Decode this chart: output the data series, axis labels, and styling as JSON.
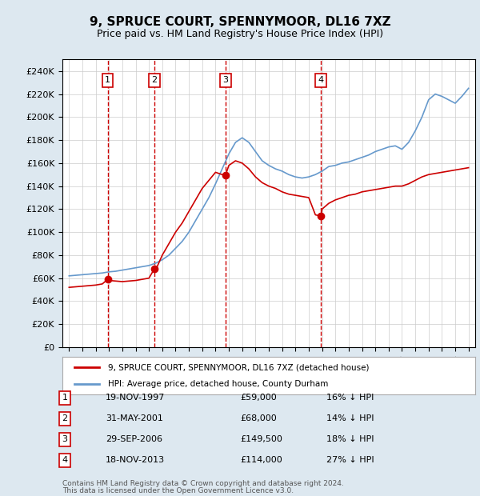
{
  "title": "9, SPRUCE COURT, SPENNYMOOR, DL16 7XZ",
  "subtitle": "Price paid vs. HM Land Registry's House Price Index (HPI)",
  "footer1": "Contains HM Land Registry data © Crown copyright and database right 2024.",
  "footer2": "This data is licensed under the Open Government Licence v3.0.",
  "legend_line1": "9, SPRUCE COURT, SPENNYMOOR, DL16 7XZ (detached house)",
  "legend_line2": "HPI: Average price, detached house, County Durham",
  "purchases": [
    {
      "num": 1,
      "date": "19-NOV-1997",
      "price": "£59,000",
      "hpi": "16% ↓ HPI",
      "year": 1997.9
    },
    {
      "num": 2,
      "date": "31-MAY-2001",
      "price": "£68,000",
      "hpi": "14% ↓ HPI",
      "year": 2001.4
    },
    {
      "num": 3,
      "date": "29-SEP-2006",
      "price": "£149,500",
      "hpi": "18% ↓ HPI",
      "year": 2006.75
    },
    {
      "num": 4,
      "date": "18-NOV-2013",
      "price": "£114,000",
      "hpi": "27% ↓ HPI",
      "year": 2013.9
    }
  ],
  "hpi_color": "#6699cc",
  "price_color": "#cc0000",
  "vline_color": "#cc0000",
  "background_color": "#dde8f0",
  "plot_bg_color": "#ffffff",
  "grid_color": "#cccccc",
  "ylim": [
    0,
    250000
  ],
  "yticks": [
    0,
    20000,
    40000,
    60000,
    80000,
    100000,
    120000,
    140000,
    160000,
    180000,
    200000,
    220000,
    240000
  ],
  "hpi_years": [
    1995,
    1995.5,
    1996,
    1996.5,
    1997,
    1997.5,
    1998,
    1998.5,
    1999,
    1999.5,
    2000,
    2000.5,
    2001,
    2001.5,
    2002,
    2002.5,
    2003,
    2003.5,
    2004,
    2004.5,
    2005,
    2005.5,
    2006,
    2006.5,
    2007,
    2007.5,
    2008,
    2008.5,
    2009,
    2009.5,
    2010,
    2010.5,
    2011,
    2011.5,
    2012,
    2012.5,
    2013,
    2013.5,
    2014,
    2014.5,
    2015,
    2015.5,
    2016,
    2016.5,
    2017,
    2017.5,
    2018,
    2018.5,
    2019,
    2019.5,
    2020,
    2020.5,
    2021,
    2021.5,
    2022,
    2022.5,
    2023,
    2023.5,
    2024,
    2024.5,
    2025
  ],
  "hpi_values": [
    62000,
    62500,
    63000,
    63500,
    64000,
    64500,
    65500,
    66000,
    67000,
    68000,
    69000,
    70000,
    71000,
    73000,
    76000,
    80000,
    86000,
    92000,
    100000,
    110000,
    120000,
    130000,
    142000,
    155000,
    168000,
    178000,
    182000,
    178000,
    170000,
    162000,
    158000,
    155000,
    153000,
    150000,
    148000,
    147000,
    148000,
    150000,
    153000,
    157000,
    158000,
    160000,
    161000,
    163000,
    165000,
    167000,
    170000,
    172000,
    174000,
    175000,
    172000,
    178000,
    188000,
    200000,
    215000,
    220000,
    218000,
    215000,
    212000,
    218000,
    225000
  ],
  "price_years": [
    1995,
    1995.5,
    1996,
    1996.5,
    1997,
    1997.5,
    1997.9,
    1998,
    1998.5,
    1999,
    1999.5,
    2000,
    2000.5,
    2001,
    2001.4,
    2001.5,
    2002,
    2002.5,
    2003,
    2003.5,
    2004,
    2004.5,
    2005,
    2005.5,
    2006,
    2006.5,
    2006.75,
    2007,
    2007.5,
    2008,
    2008.5,
    2009,
    2009.5,
    2010,
    2010.5,
    2011,
    2011.5,
    2012,
    2012.5,
    2013,
    2013.5,
    2013.9,
    2014,
    2014.5,
    2015,
    2015.5,
    2016,
    2016.5,
    2017,
    2017.5,
    2018,
    2018.5,
    2019,
    2019.5,
    2020,
    2020.5,
    2021,
    2021.5,
    2022,
    2022.5,
    2023,
    2023.5,
    2024,
    2024.5,
    2025
  ],
  "price_values": [
    52000,
    52500,
    53000,
    53500,
    54000,
    55000,
    59000,
    58000,
    57500,
    57000,
    57500,
    58000,
    59000,
    60000,
    68000,
    67000,
    80000,
    90000,
    100000,
    108000,
    118000,
    128000,
    138000,
    145000,
    152000,
    150000,
    149500,
    158000,
    162000,
    160000,
    155000,
    148000,
    143000,
    140000,
    138000,
    135000,
    133000,
    132000,
    131000,
    130000,
    115000,
    114000,
    120000,
    125000,
    128000,
    130000,
    132000,
    133000,
    135000,
    136000,
    137000,
    138000,
    139000,
    140000,
    140000,
    142000,
    145000,
    148000,
    150000,
    151000,
    152000,
    153000,
    154000,
    155000,
    156000
  ]
}
